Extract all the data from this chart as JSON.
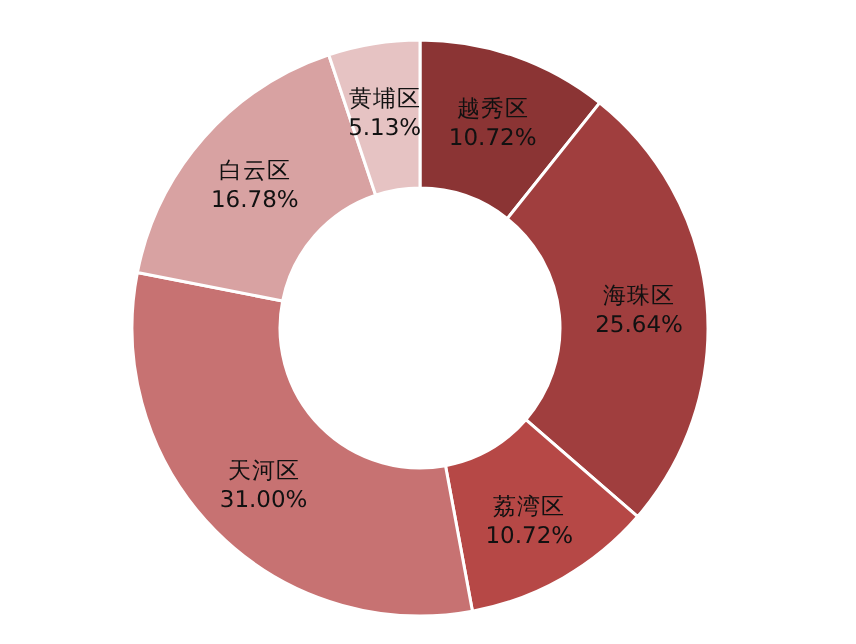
{
  "chart_data": {
    "type": "donut",
    "categories": [
      "越秀区",
      "海珠区",
      "荔湾区",
      "天河区",
      "白云区",
      "黄埔区"
    ],
    "values": [
      10.72,
      25.64,
      10.72,
      31.0,
      16.78,
      5.13
    ],
    "value_labels": [
      "10.72%",
      "25.64%",
      "10.72%",
      "31.00%",
      "16.78%",
      "5.13%"
    ],
    "colors": [
      "#8b3434",
      "#a03e3e",
      "#b64846",
      "#c77272",
      "#d8a2a2",
      "#e6c3c3"
    ]
  }
}
